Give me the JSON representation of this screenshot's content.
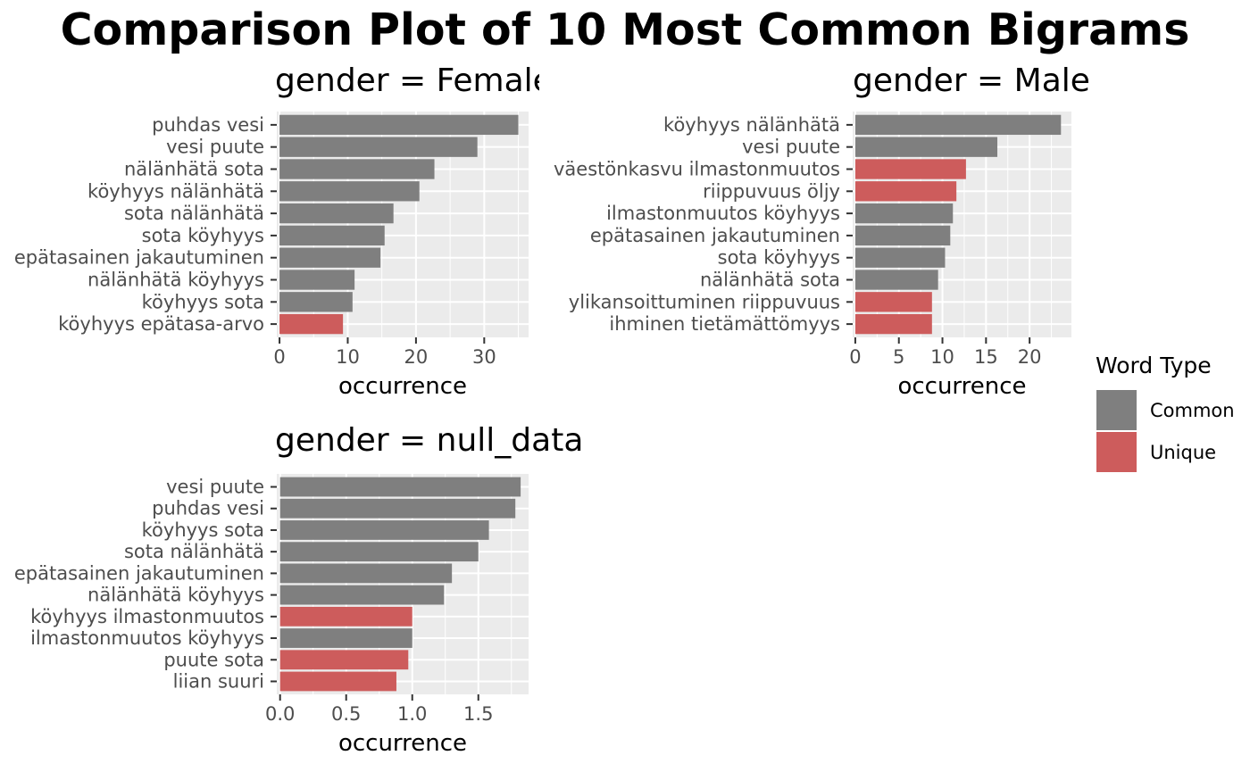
{
  "title": "Comparison Plot of 10 Most Common Bigrams",
  "colors": {
    "Common": "#7f7f7f",
    "Unique": "#cd5c5c",
    "panel": "#ebebeb",
    "grid": "#ffffff"
  },
  "legend": {
    "title": "Word Type",
    "entries": [
      {
        "label": "Common",
        "color": "#7f7f7f"
      },
      {
        "label": "Unique",
        "color": "#cd5c5c"
      }
    ]
  },
  "chart_data": [
    {
      "type": "bar",
      "orientation": "horizontal",
      "facet_title": "gender = Female",
      "facet_title_visible": "gender = Fema",
      "xlabel": "occurrence",
      "xlim": [
        -0.4,
        36.5
      ],
      "xticks": [
        0,
        10,
        20,
        30
      ],
      "xtick_labels": [
        "0",
        "10",
        "20",
        "30"
      ],
      "categories": [
        "puhdas vesi",
        "vesi puute",
        "nälänhätä sota",
        "köyhyys nälänhätä",
        "sota nälänhätä",
        "sota köyhyys",
        "epätasainen jakautuminen",
        "nälänhätä köyhyys",
        "köyhyys sota",
        "köyhyys epätasa-arvo"
      ],
      "values": [
        35,
        29,
        22.7,
        20.5,
        16.7,
        15.4,
        14.8,
        11,
        10.7,
        9.3
      ],
      "word_type": [
        "Common",
        "Common",
        "Common",
        "Common",
        "Common",
        "Common",
        "Common",
        "Common",
        "Common",
        "Unique"
      ]
    },
    {
      "type": "bar",
      "orientation": "horizontal",
      "facet_title": "gender = Male",
      "xlabel": "occurrence",
      "xlim": [
        -0.3,
        24.8
      ],
      "xticks": [
        0,
        5,
        10,
        15,
        20
      ],
      "xtick_labels": [
        "0",
        "5",
        "10",
        "15",
        "20"
      ],
      "categories": [
        "köyhyys nälänhätä",
        "vesi puute",
        "väestönkasvu ilmastonmuutos",
        "riippuvuus öljy",
        "ilmastonmuutos köyhyys",
        "epätasainen jakautuminen",
        "sota köyhyys",
        "nälänhätä sota",
        "ylikansoittuminen riippuvuus",
        "ihminen tietämättömyys"
      ],
      "values": [
        23.6,
        16.3,
        12.7,
        11.6,
        11.2,
        10.9,
        10.3,
        9.5,
        8.8,
        8.8
      ],
      "word_type": [
        "Common",
        "Common",
        "Unique",
        "Unique",
        "Common",
        "Common",
        "Common",
        "Common",
        "Unique",
        "Unique"
      ]
    },
    {
      "type": "bar",
      "orientation": "horizontal",
      "facet_title": "gender = null_data",
      "xlabel": "occurrence",
      "xlim": [
        -0.025,
        1.88
      ],
      "xticks": [
        0,
        0.5,
        1,
        1.5
      ],
      "xtick_labels": [
        "0.0",
        "0.5",
        "1.0",
        "1.5"
      ],
      "categories": [
        "vesi puute",
        "puhdas vesi",
        "köyhyys sota",
        "sota nälänhätä",
        "epätasainen jakautuminen",
        "nälänhätä köyhyys",
        "köyhyys ilmastonmuutos",
        "ilmastonmuutos köyhyys",
        "puute sota",
        "liian suuri"
      ],
      "values": [
        1.82,
        1.78,
        1.58,
        1.5,
        1.3,
        1.24,
        1.0,
        1.0,
        0.97,
        0.88
      ],
      "word_type": [
        "Common",
        "Common",
        "Common",
        "Common",
        "Common",
        "Common",
        "Unique",
        "Common",
        "Unique",
        "Unique"
      ]
    }
  ]
}
